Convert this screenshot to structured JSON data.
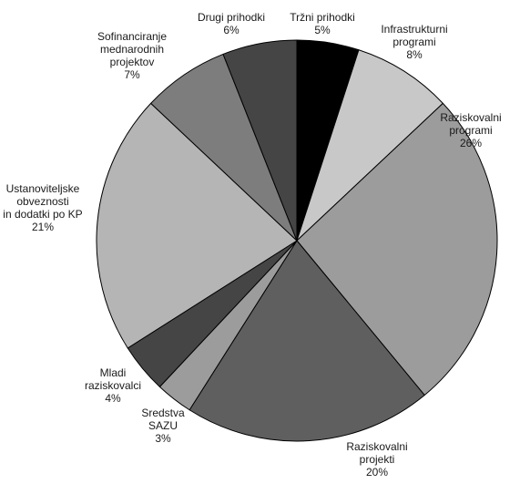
{
  "chart_data": {
    "type": "pie",
    "start": "top",
    "direction": "clockwise",
    "slices": [
      {
        "label_lines": [
          "Tržni prihodki",
          "5%"
        ],
        "value": 5,
        "color": "#000000"
      },
      {
        "label_lines": [
          "Infrastrukturni",
          "programi",
          "8%"
        ],
        "value": 8,
        "color": "#c8c8c8"
      },
      {
        "label_lines": [
          "Raziskovalni",
          "programi",
          "26%"
        ],
        "value": 26,
        "color": "#9c9c9c"
      },
      {
        "label_lines": [
          "Raziskovalni",
          "projekti",
          "20%"
        ],
        "value": 20,
        "color": "#5f5f60"
      },
      {
        "label_lines": [
          "Sredstva",
          "SAZU",
          "3%"
        ],
        "value": 3,
        "color": "#9c9c9c"
      },
      {
        "label_lines": [
          "Mladi",
          "raziskovalci",
          "4%"
        ],
        "value": 4,
        "color": "#454545"
      },
      {
        "label_lines": [
          "Ustanoviteljske",
          "obveznosti",
          "in dodatki po KP",
          "21%"
        ],
        "value": 21,
        "color": "#b5b5b5"
      },
      {
        "label_lines": [
          "Sofinanciranje",
          "mednarodnih",
          "projektov",
          "7%"
        ],
        "value": 7,
        "color": "#7d7d7d"
      },
      {
        "label_lines": [
          "Drugi prihodki",
          "6%"
        ],
        "value": 6,
        "color": "#454545"
      }
    ]
  }
}
